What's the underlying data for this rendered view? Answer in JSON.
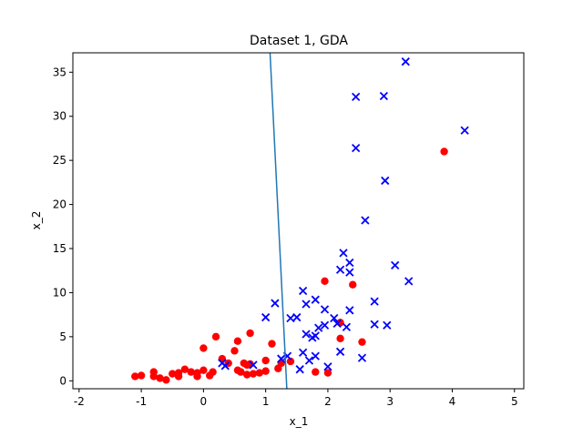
{
  "chart_data": {
    "type": "scatter",
    "title": "Dataset 1, GDA",
    "xlabel": "x_1",
    "ylabel": "x_2",
    "xlim": [
      -2.1,
      5.15
    ],
    "ylim": [
      -0.9,
      37.2
    ],
    "xticks": [
      -2,
      -1,
      0,
      1,
      2,
      3,
      4,
      5
    ],
    "yticks": [
      0,
      5,
      10,
      15,
      20,
      25,
      30,
      35
    ],
    "grid": false,
    "series": [
      {
        "marker": "circle",
        "color": "#ff0000",
        "points": [
          [
            -1.1,
            0.5
          ],
          [
            -1.0,
            0.6
          ],
          [
            -0.8,
            0.5
          ],
          [
            -0.8,
            1.0
          ],
          [
            -0.7,
            0.3
          ],
          [
            -0.6,
            0.1
          ],
          [
            -0.5,
            0.8
          ],
          [
            -0.4,
            0.5
          ],
          [
            -0.4,
            0.9
          ],
          [
            -0.3,
            1.3
          ],
          [
            -0.2,
            1.0
          ],
          [
            -0.1,
            0.5
          ],
          [
            -0.1,
            0.9
          ],
          [
            0.0,
            1.2
          ],
          [
            0.0,
            3.7
          ],
          [
            0.1,
            0.6
          ],
          [
            0.15,
            1.0
          ],
          [
            0.2,
            5.0
          ],
          [
            0.3,
            2.5
          ],
          [
            0.4,
            2.0
          ],
          [
            0.5,
            3.4
          ],
          [
            0.55,
            1.2
          ],
          [
            0.55,
            4.5
          ],
          [
            0.6,
            1.0
          ],
          [
            0.65,
            2.0
          ],
          [
            0.7,
            0.7
          ],
          [
            0.7,
            1.8
          ],
          [
            0.75,
            1.9
          ],
          [
            0.75,
            5.4
          ],
          [
            0.8,
            0.8
          ],
          [
            0.9,
            0.9
          ],
          [
            1.0,
            1.1
          ],
          [
            1.0,
            2.3
          ],
          [
            1.1,
            4.2
          ],
          [
            1.2,
            1.4
          ],
          [
            1.25,
            2.0
          ],
          [
            1.4,
            2.2
          ],
          [
            1.8,
            1.0
          ],
          [
            1.95,
            11.3
          ],
          [
            2.0,
            0.9
          ],
          [
            2.2,
            6.6
          ],
          [
            2.2,
            4.8
          ],
          [
            2.4,
            10.9
          ],
          [
            2.55,
            4.4
          ],
          [
            3.87,
            26.0
          ]
        ]
      },
      {
        "marker": "x",
        "color": "#0000ff",
        "points": [
          [
            0.3,
            2.0
          ],
          [
            0.35,
            1.7
          ],
          [
            0.8,
            1.8
          ],
          [
            1.0,
            7.2
          ],
          [
            1.15,
            8.8
          ],
          [
            1.25,
            2.5
          ],
          [
            1.35,
            2.8
          ],
          [
            1.4,
            7.1
          ],
          [
            1.5,
            7.2
          ],
          [
            1.55,
            1.3
          ],
          [
            1.6,
            10.2
          ],
          [
            1.6,
            3.2
          ],
          [
            1.65,
            8.7
          ],
          [
            1.65,
            5.3
          ],
          [
            1.7,
            2.3
          ],
          [
            1.75,
            4.9
          ],
          [
            1.8,
            5.1
          ],
          [
            1.8,
            2.8
          ],
          [
            1.8,
            9.2
          ],
          [
            1.85,
            6.0
          ],
          [
            1.95,
            8.1
          ],
          [
            1.95,
            6.3
          ],
          [
            2.0,
            1.6
          ],
          [
            2.1,
            7.1
          ],
          [
            2.15,
            6.5
          ],
          [
            2.2,
            12.6
          ],
          [
            2.2,
            3.3
          ],
          [
            2.25,
            14.5
          ],
          [
            2.3,
            6.1
          ],
          [
            2.35,
            13.4
          ],
          [
            2.35,
            8.0
          ],
          [
            2.35,
            12.3
          ],
          [
            2.45,
            26.4
          ],
          [
            2.45,
            32.2
          ],
          [
            2.55,
            2.6
          ],
          [
            2.6,
            18.2
          ],
          [
            2.75,
            9.0
          ],
          [
            2.75,
            6.4
          ],
          [
            2.9,
            32.3
          ],
          [
            2.92,
            22.7
          ],
          [
            2.95,
            6.3
          ],
          [
            3.08,
            13.1
          ],
          [
            3.25,
            36.2
          ],
          [
            3.3,
            11.3
          ],
          [
            4.2,
            28.4
          ]
        ]
      }
    ],
    "decision_boundary": {
      "color": "#1f77b4",
      "points": [
        [
          1.07,
          37.2
        ],
        [
          1.34,
          -0.9
        ]
      ]
    }
  }
}
